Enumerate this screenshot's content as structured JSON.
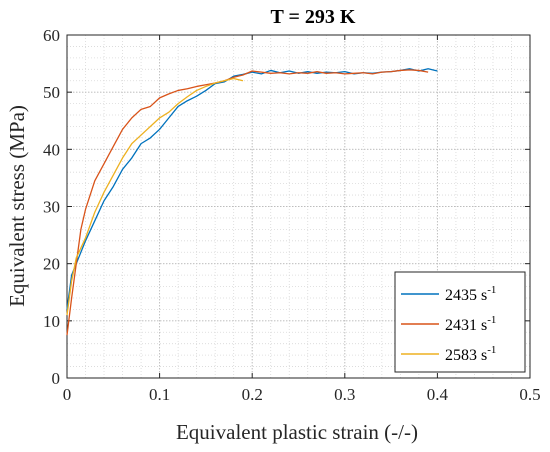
{
  "chart_data": {
    "type": "line",
    "title": "T = 293 K",
    "xlabel": "Equivalent plastic strain (-/-)",
    "ylabel": "Equivalent stress (MPa)",
    "xlim": [
      0,
      0.5
    ],
    "ylim": [
      0,
      60
    ],
    "x_ticks": [
      "0",
      "0.1",
      "0.2",
      "0.3",
      "0.4",
      "0.5"
    ],
    "y_ticks": [
      "0",
      "10",
      "20",
      "30",
      "40",
      "50",
      "60"
    ],
    "grid": "major and minor (dotted)",
    "legend_position": "bottom-right",
    "series": [
      {
        "name": "2435 s",
        "name_superscript": "-1",
        "color": "#0072BD",
        "x": [
          0,
          0.005,
          0.01,
          0.02,
          0.03,
          0.04,
          0.05,
          0.06,
          0.07,
          0.08,
          0.09,
          0.1,
          0.11,
          0.12,
          0.13,
          0.14,
          0.15,
          0.16,
          0.17,
          0.18,
          0.19,
          0.2,
          0.21,
          0.22,
          0.23,
          0.24,
          0.25,
          0.26,
          0.27,
          0.28,
          0.29,
          0.3,
          0.31,
          0.32,
          0.33,
          0.34,
          0.35,
          0.36,
          0.37,
          0.38,
          0.39,
          0.4
        ],
        "y": [
          12.0,
          18.0,
          20.0,
          24.0,
          27.5,
          31.0,
          33.5,
          36.5,
          38.5,
          41.0,
          42.0,
          43.5,
          45.5,
          47.5,
          48.5,
          49.3,
          50.3,
          51.5,
          51.8,
          52.8,
          53.1,
          53.5,
          53.2,
          53.8,
          53.4,
          53.7,
          53.3,
          53.6,
          53.3,
          53.5,
          53.4,
          53.6,
          53.2,
          53.4,
          53.3,
          53.5,
          53.6,
          53.8,
          54.1,
          53.7,
          54.1,
          53.7
        ]
      },
      {
        "name": "2431 s",
        "name_superscript": "-1",
        "color": "#D95319",
        "x": [
          0,
          0.005,
          0.01,
          0.015,
          0.02,
          0.03,
          0.04,
          0.05,
          0.06,
          0.07,
          0.08,
          0.09,
          0.1,
          0.11,
          0.12,
          0.13,
          0.14,
          0.15,
          0.16,
          0.17,
          0.18,
          0.19,
          0.2,
          0.21,
          0.22,
          0.23,
          0.24,
          0.25,
          0.26,
          0.27,
          0.28,
          0.29,
          0.3,
          0.31,
          0.32,
          0.33,
          0.34,
          0.35,
          0.36,
          0.37,
          0.38,
          0.39
        ],
        "y": [
          7.5,
          14.0,
          20.0,
          26.0,
          29.5,
          34.5,
          37.5,
          40.5,
          43.5,
          45.5,
          47.0,
          47.5,
          49.0,
          49.7,
          50.3,
          50.6,
          51.0,
          51.3,
          51.6,
          52.0,
          52.6,
          53.0,
          53.7,
          53.5,
          53.3,
          53.4,
          53.2,
          53.4,
          53.3,
          53.6,
          53.3,
          53.4,
          53.2,
          53.3,
          53.4,
          53.2,
          53.5,
          53.6,
          53.8,
          53.9,
          53.8,
          53.5
        ]
      },
      {
        "name": "2583 s",
        "name_superscript": "-1",
        "color": "#EDB120",
        "x": [
          0,
          0.005,
          0.01,
          0.02,
          0.03,
          0.04,
          0.05,
          0.06,
          0.07,
          0.08,
          0.09,
          0.1,
          0.11,
          0.12,
          0.13,
          0.14,
          0.15,
          0.16,
          0.17,
          0.18,
          0.19
        ],
        "y": [
          11.0,
          17.0,
          21.0,
          24.5,
          29.0,
          32.5,
          35.5,
          38.5,
          41.0,
          42.5,
          44.0,
          45.5,
          46.5,
          48.0,
          49.2,
          50.3,
          51.0,
          51.6,
          52.0,
          52.4,
          52.0
        ]
      }
    ]
  }
}
